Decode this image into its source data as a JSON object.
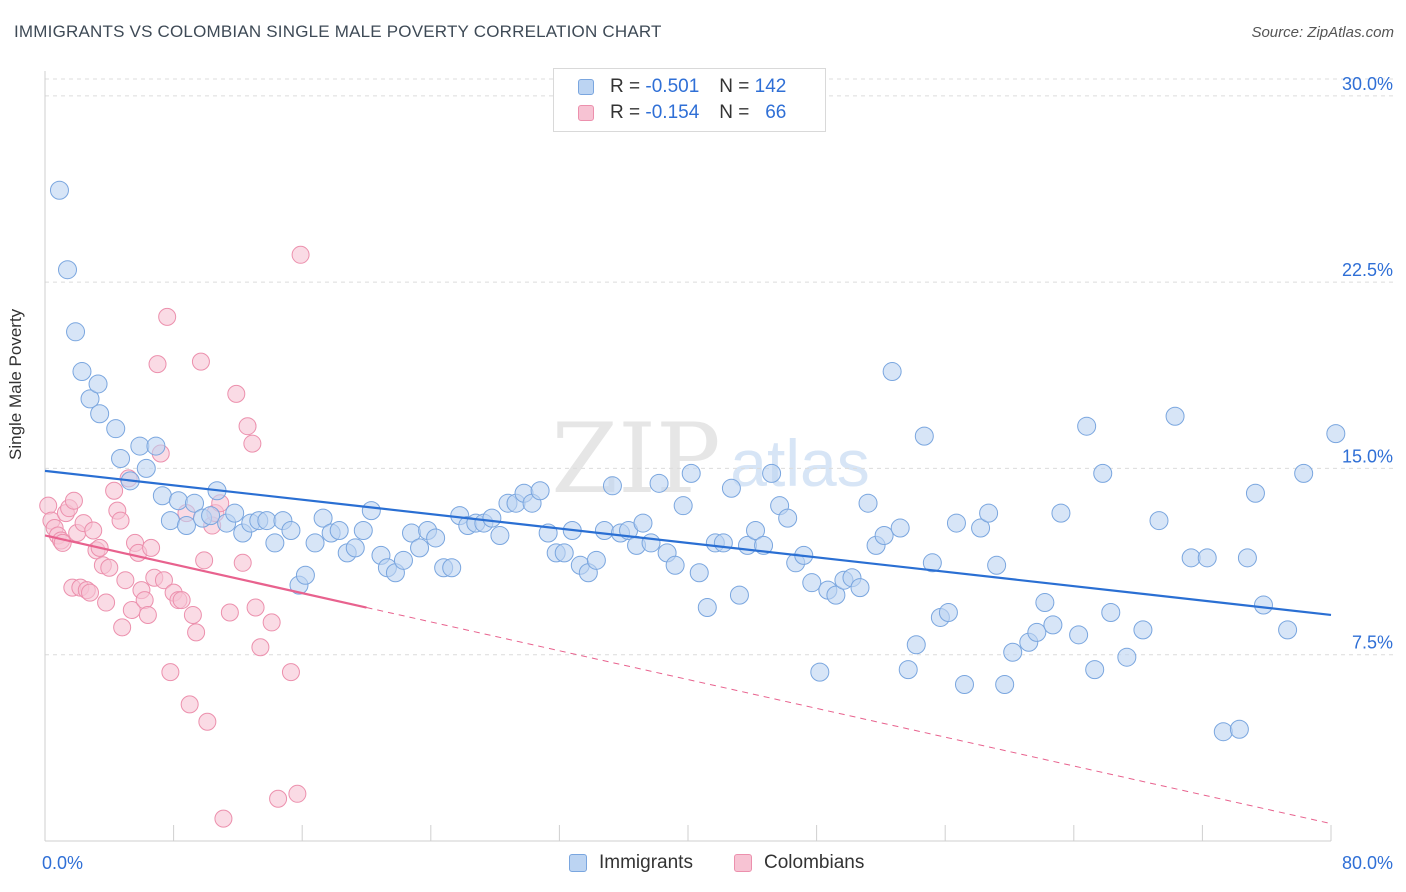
{
  "title": "IMMIGRANTS VS COLOMBIAN SINGLE MALE POVERTY CORRELATION CHART",
  "source": "Source: ZipAtlas.com",
  "watermark": {
    "zip": "ZIP",
    "atlas": "atlas"
  },
  "colors": {
    "blue_fill": "#bcd4f2",
    "blue_stroke": "#7aa6df",
    "blue_line": "#2a6fd3",
    "pink_fill": "#f7c3d3",
    "pink_stroke": "#ec90ad",
    "pink_line": "#e8628e",
    "axis_label": "#2f6fd6",
    "grid": "#dcdcdc"
  },
  "legend": [
    {
      "r_label": "R =",
      "r_value": "-0.501",
      "n_label": "N =",
      "n_value": "142"
    },
    {
      "r_label": "R =",
      "r_value": "-0.154",
      "n_label": "N =",
      "n_value": "66"
    }
  ],
  "chart_data": {
    "type": "scatter",
    "ylabel": "Single Male Poverty",
    "xlim": [
      0,
      80
    ],
    "ylim": [
      0,
      31
    ],
    "x_tick_labels": [
      "0.0%",
      "80.0%"
    ],
    "y_ticks": [
      {
        "value": 7.5,
        "label": "7.5%"
      },
      {
        "value": 15.0,
        "label": "15.0%"
      },
      {
        "value": 22.5,
        "label": "22.5%"
      },
      {
        "value": 30.0,
        "label": "30.0%"
      }
    ],
    "grid": "horizontal dashed",
    "legend_position": "top-center",
    "series": [
      {
        "name": "Immigrants",
        "trend": {
          "x": [
            0,
            80
          ],
          "y": [
            14.9,
            9.1
          ]
        },
        "points": [
          [
            0.9,
            26.2
          ],
          [
            1.4,
            23.0
          ],
          [
            1.9,
            20.5
          ],
          [
            2.3,
            18.9
          ],
          [
            2.8,
            17.8
          ],
          [
            3.3,
            18.4
          ],
          [
            3.4,
            17.2
          ],
          [
            4.4,
            16.6
          ],
          [
            4.7,
            15.4
          ],
          [
            5.3,
            14.5
          ],
          [
            5.9,
            15.9
          ],
          [
            6.3,
            15.0
          ],
          [
            6.9,
            15.9
          ],
          [
            7.3,
            13.9
          ],
          [
            7.8,
            12.9
          ],
          [
            8.3,
            13.7
          ],
          [
            8.8,
            12.7
          ],
          [
            9.3,
            13.6
          ],
          [
            9.8,
            13.0
          ],
          [
            10.3,
            13.1
          ],
          [
            10.7,
            14.1
          ],
          [
            11.3,
            12.8
          ],
          [
            11.8,
            13.2
          ],
          [
            12.3,
            12.4
          ],
          [
            12.8,
            12.8
          ],
          [
            13.3,
            12.9
          ],
          [
            13.8,
            12.9
          ],
          [
            14.3,
            12.0
          ],
          [
            14.8,
            12.9
          ],
          [
            15.3,
            12.5
          ],
          [
            15.8,
            10.3
          ],
          [
            16.2,
            10.7
          ],
          [
            16.8,
            12.0
          ],
          [
            17.3,
            13.0
          ],
          [
            17.8,
            12.4
          ],
          [
            18.3,
            12.5
          ],
          [
            18.8,
            11.6
          ],
          [
            19.3,
            11.8
          ],
          [
            19.8,
            12.5
          ],
          [
            20.3,
            13.3
          ],
          [
            20.9,
            11.5
          ],
          [
            21.3,
            11.0
          ],
          [
            21.8,
            10.8
          ],
          [
            22.3,
            11.3
          ],
          [
            22.8,
            12.4
          ],
          [
            23.3,
            11.8
          ],
          [
            23.8,
            12.5
          ],
          [
            24.3,
            12.2
          ],
          [
            24.8,
            11.0
          ],
          [
            25.3,
            11.0
          ],
          [
            25.8,
            13.1
          ],
          [
            26.3,
            12.7
          ],
          [
            26.8,
            12.8
          ],
          [
            27.3,
            12.8
          ],
          [
            27.8,
            13.0
          ],
          [
            28.3,
            12.3
          ],
          [
            28.8,
            13.6
          ],
          [
            29.3,
            13.6
          ],
          [
            29.8,
            14.0
          ],
          [
            30.3,
            13.6
          ],
          [
            30.8,
            14.1
          ],
          [
            31.3,
            12.4
          ],
          [
            31.8,
            11.6
          ],
          [
            32.3,
            11.6
          ],
          [
            32.8,
            12.5
          ],
          [
            33.3,
            11.1
          ],
          [
            33.8,
            10.8
          ],
          [
            34.3,
            11.3
          ],
          [
            34.8,
            12.5
          ],
          [
            35.3,
            14.3
          ],
          [
            35.8,
            12.4
          ],
          [
            36.3,
            12.5
          ],
          [
            36.8,
            11.9
          ],
          [
            37.2,
            12.8
          ],
          [
            37.7,
            12.0
          ],
          [
            38.2,
            14.4
          ],
          [
            38.7,
            11.6
          ],
          [
            39.2,
            11.1
          ],
          [
            39.7,
            13.5
          ],
          [
            40.2,
            14.8
          ],
          [
            40.7,
            10.8
          ],
          [
            41.2,
            9.4
          ],
          [
            41.7,
            12.0
          ],
          [
            42.2,
            12.0
          ],
          [
            42.7,
            14.2
          ],
          [
            43.2,
            9.9
          ],
          [
            43.7,
            11.9
          ],
          [
            44.2,
            12.5
          ],
          [
            44.7,
            11.9
          ],
          [
            45.2,
            14.8
          ],
          [
            45.7,
            13.5
          ],
          [
            46.2,
            13.0
          ],
          [
            46.7,
            11.2
          ],
          [
            47.2,
            11.5
          ],
          [
            47.7,
            10.4
          ],
          [
            48.2,
            6.8
          ],
          [
            48.7,
            10.1
          ],
          [
            49.2,
            9.9
          ],
          [
            49.7,
            10.5
          ],
          [
            50.2,
            10.6
          ],
          [
            50.7,
            10.2
          ],
          [
            51.2,
            13.6
          ],
          [
            51.7,
            11.9
          ],
          [
            52.2,
            12.3
          ],
          [
            52.7,
            18.9
          ],
          [
            53.2,
            12.6
          ],
          [
            53.7,
            6.9
          ],
          [
            54.2,
            7.9
          ],
          [
            54.7,
            16.3
          ],
          [
            55.2,
            11.2
          ],
          [
            55.7,
            9.0
          ],
          [
            56.2,
            9.2
          ],
          [
            56.7,
            12.8
          ],
          [
            57.2,
            6.3
          ],
          [
            58.2,
            12.6
          ],
          [
            58.7,
            13.2
          ],
          [
            59.2,
            11.1
          ],
          [
            59.7,
            6.3
          ],
          [
            60.2,
            7.6
          ],
          [
            61.2,
            8.0
          ],
          [
            61.7,
            8.4
          ],
          [
            62.2,
            9.6
          ],
          [
            62.7,
            8.7
          ],
          [
            63.2,
            13.2
          ],
          [
            64.3,
            8.3
          ],
          [
            64.8,
            16.7
          ],
          [
            65.3,
            6.9
          ],
          [
            65.8,
            14.8
          ],
          [
            66.3,
            9.2
          ],
          [
            67.3,
            7.4
          ],
          [
            68.3,
            8.5
          ],
          [
            69.3,
            12.9
          ],
          [
            70.3,
            17.1
          ],
          [
            71.3,
            11.4
          ],
          [
            72.3,
            11.4
          ],
          [
            73.3,
            4.4
          ],
          [
            74.3,
            4.5
          ],
          [
            74.8,
            11.4
          ],
          [
            75.3,
            14.0
          ],
          [
            75.8,
            9.5
          ],
          [
            77.3,
            8.5
          ],
          [
            78.3,
            14.8
          ],
          [
            80.3,
            16.4
          ]
        ]
      },
      {
        "name": "Colombians",
        "trend": {
          "x": [
            0,
            20
          ],
          "y": [
            12.3,
            9.4
          ]
        },
        "trend_extension": {
          "x": [
            20,
            80
          ],
          "y": [
            9.4,
            0.7
          ]
        },
        "points": [
          [
            0.2,
            13.5
          ],
          [
            0.4,
            12.9
          ],
          [
            0.6,
            12.6
          ],
          [
            0.8,
            12.3
          ],
          [
            1.0,
            12.1
          ],
          [
            1.1,
            12.0
          ],
          [
            1.3,
            13.2
          ],
          [
            1.5,
            13.4
          ],
          [
            1.7,
            10.2
          ],
          [
            1.8,
            13.7
          ],
          [
            2.0,
            12.4
          ],
          [
            2.2,
            10.2
          ],
          [
            2.4,
            12.8
          ],
          [
            2.6,
            10.1
          ],
          [
            2.8,
            10.0
          ],
          [
            3.0,
            12.5
          ],
          [
            3.2,
            11.7
          ],
          [
            3.4,
            11.8
          ],
          [
            3.6,
            11.1
          ],
          [
            3.8,
            9.6
          ],
          [
            4.0,
            11.0
          ],
          [
            4.3,
            14.1
          ],
          [
            4.5,
            13.3
          ],
          [
            4.7,
            12.9
          ],
          [
            4.8,
            8.6
          ],
          [
            5.0,
            10.5
          ],
          [
            5.2,
            14.6
          ],
          [
            5.4,
            9.3
          ],
          [
            5.6,
            12.0
          ],
          [
            5.8,
            11.6
          ],
          [
            6.0,
            10.1
          ],
          [
            6.2,
            9.7
          ],
          [
            6.4,
            9.1
          ],
          [
            6.6,
            11.8
          ],
          [
            6.8,
            10.6
          ],
          [
            7.0,
            19.2
          ],
          [
            7.2,
            15.6
          ],
          [
            7.4,
            10.5
          ],
          [
            7.6,
            21.1
          ],
          [
            7.8,
            6.8
          ],
          [
            8.0,
            10.0
          ],
          [
            8.3,
            9.7
          ],
          [
            8.5,
            9.7
          ],
          [
            8.8,
            13.2
          ],
          [
            9.0,
            5.5
          ],
          [
            9.2,
            9.1
          ],
          [
            9.4,
            8.4
          ],
          [
            9.7,
            19.3
          ],
          [
            9.9,
            11.3
          ],
          [
            10.1,
            4.8
          ],
          [
            10.4,
            12.7
          ],
          [
            10.6,
            13.2
          ],
          [
            10.9,
            13.6
          ],
          [
            11.1,
            0.9
          ],
          [
            11.5,
            9.2
          ],
          [
            11.9,
            18.0
          ],
          [
            12.3,
            11.2
          ],
          [
            12.6,
            16.7
          ],
          [
            12.9,
            16.0
          ],
          [
            13.1,
            9.4
          ],
          [
            13.4,
            7.8
          ],
          [
            14.1,
            8.8
          ],
          [
            14.5,
            1.7
          ],
          [
            15.3,
            6.8
          ],
          [
            15.7,
            1.9
          ],
          [
            15.9,
            23.6
          ]
        ]
      }
    ]
  },
  "bottom_legend": [
    "Immigrants",
    "Colombians"
  ]
}
